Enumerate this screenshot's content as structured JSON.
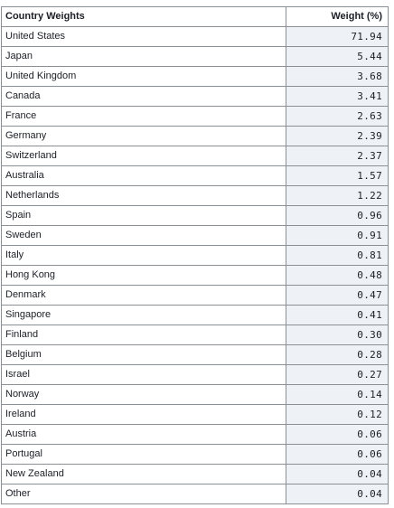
{
  "table": {
    "columns": [
      "Country Weights",
      "Weight (%)"
    ],
    "rows": [
      {
        "country": "United States",
        "weight": "71.94"
      },
      {
        "country": "Japan",
        "weight": "5.44"
      },
      {
        "country": "United Kingdom",
        "weight": "3.68"
      },
      {
        "country": "Canada",
        "weight": "3.41"
      },
      {
        "country": "France",
        "weight": "2.63"
      },
      {
        "country": "Germany",
        "weight": "2.39"
      },
      {
        "country": "Switzerland",
        "weight": "2.37"
      },
      {
        "country": "Australia",
        "weight": "1.57"
      },
      {
        "country": "Netherlands",
        "weight": "1.22"
      },
      {
        "country": "Spain",
        "weight": "0.96"
      },
      {
        "country": "Sweden",
        "weight": "0.91"
      },
      {
        "country": "Italy",
        "weight": "0.81"
      },
      {
        "country": "Hong Kong",
        "weight": "0.48"
      },
      {
        "country": "Denmark",
        "weight": "0.47"
      },
      {
        "country": "Singapore",
        "weight": "0.41"
      },
      {
        "country": "Finland",
        "weight": "0.30"
      },
      {
        "country": "Belgium",
        "weight": "0.28"
      },
      {
        "country": "Israel",
        "weight": "0.27"
      },
      {
        "country": "Norway",
        "weight": "0.14"
      },
      {
        "country": "Ireland",
        "weight": "0.12"
      },
      {
        "country": "Austria",
        "weight": "0.06"
      },
      {
        "country": "Portugal",
        "weight": "0.06"
      },
      {
        "country": "New Zealand",
        "weight": "0.04"
      },
      {
        "country": "Other",
        "weight": "0.04"
      }
    ]
  }
}
